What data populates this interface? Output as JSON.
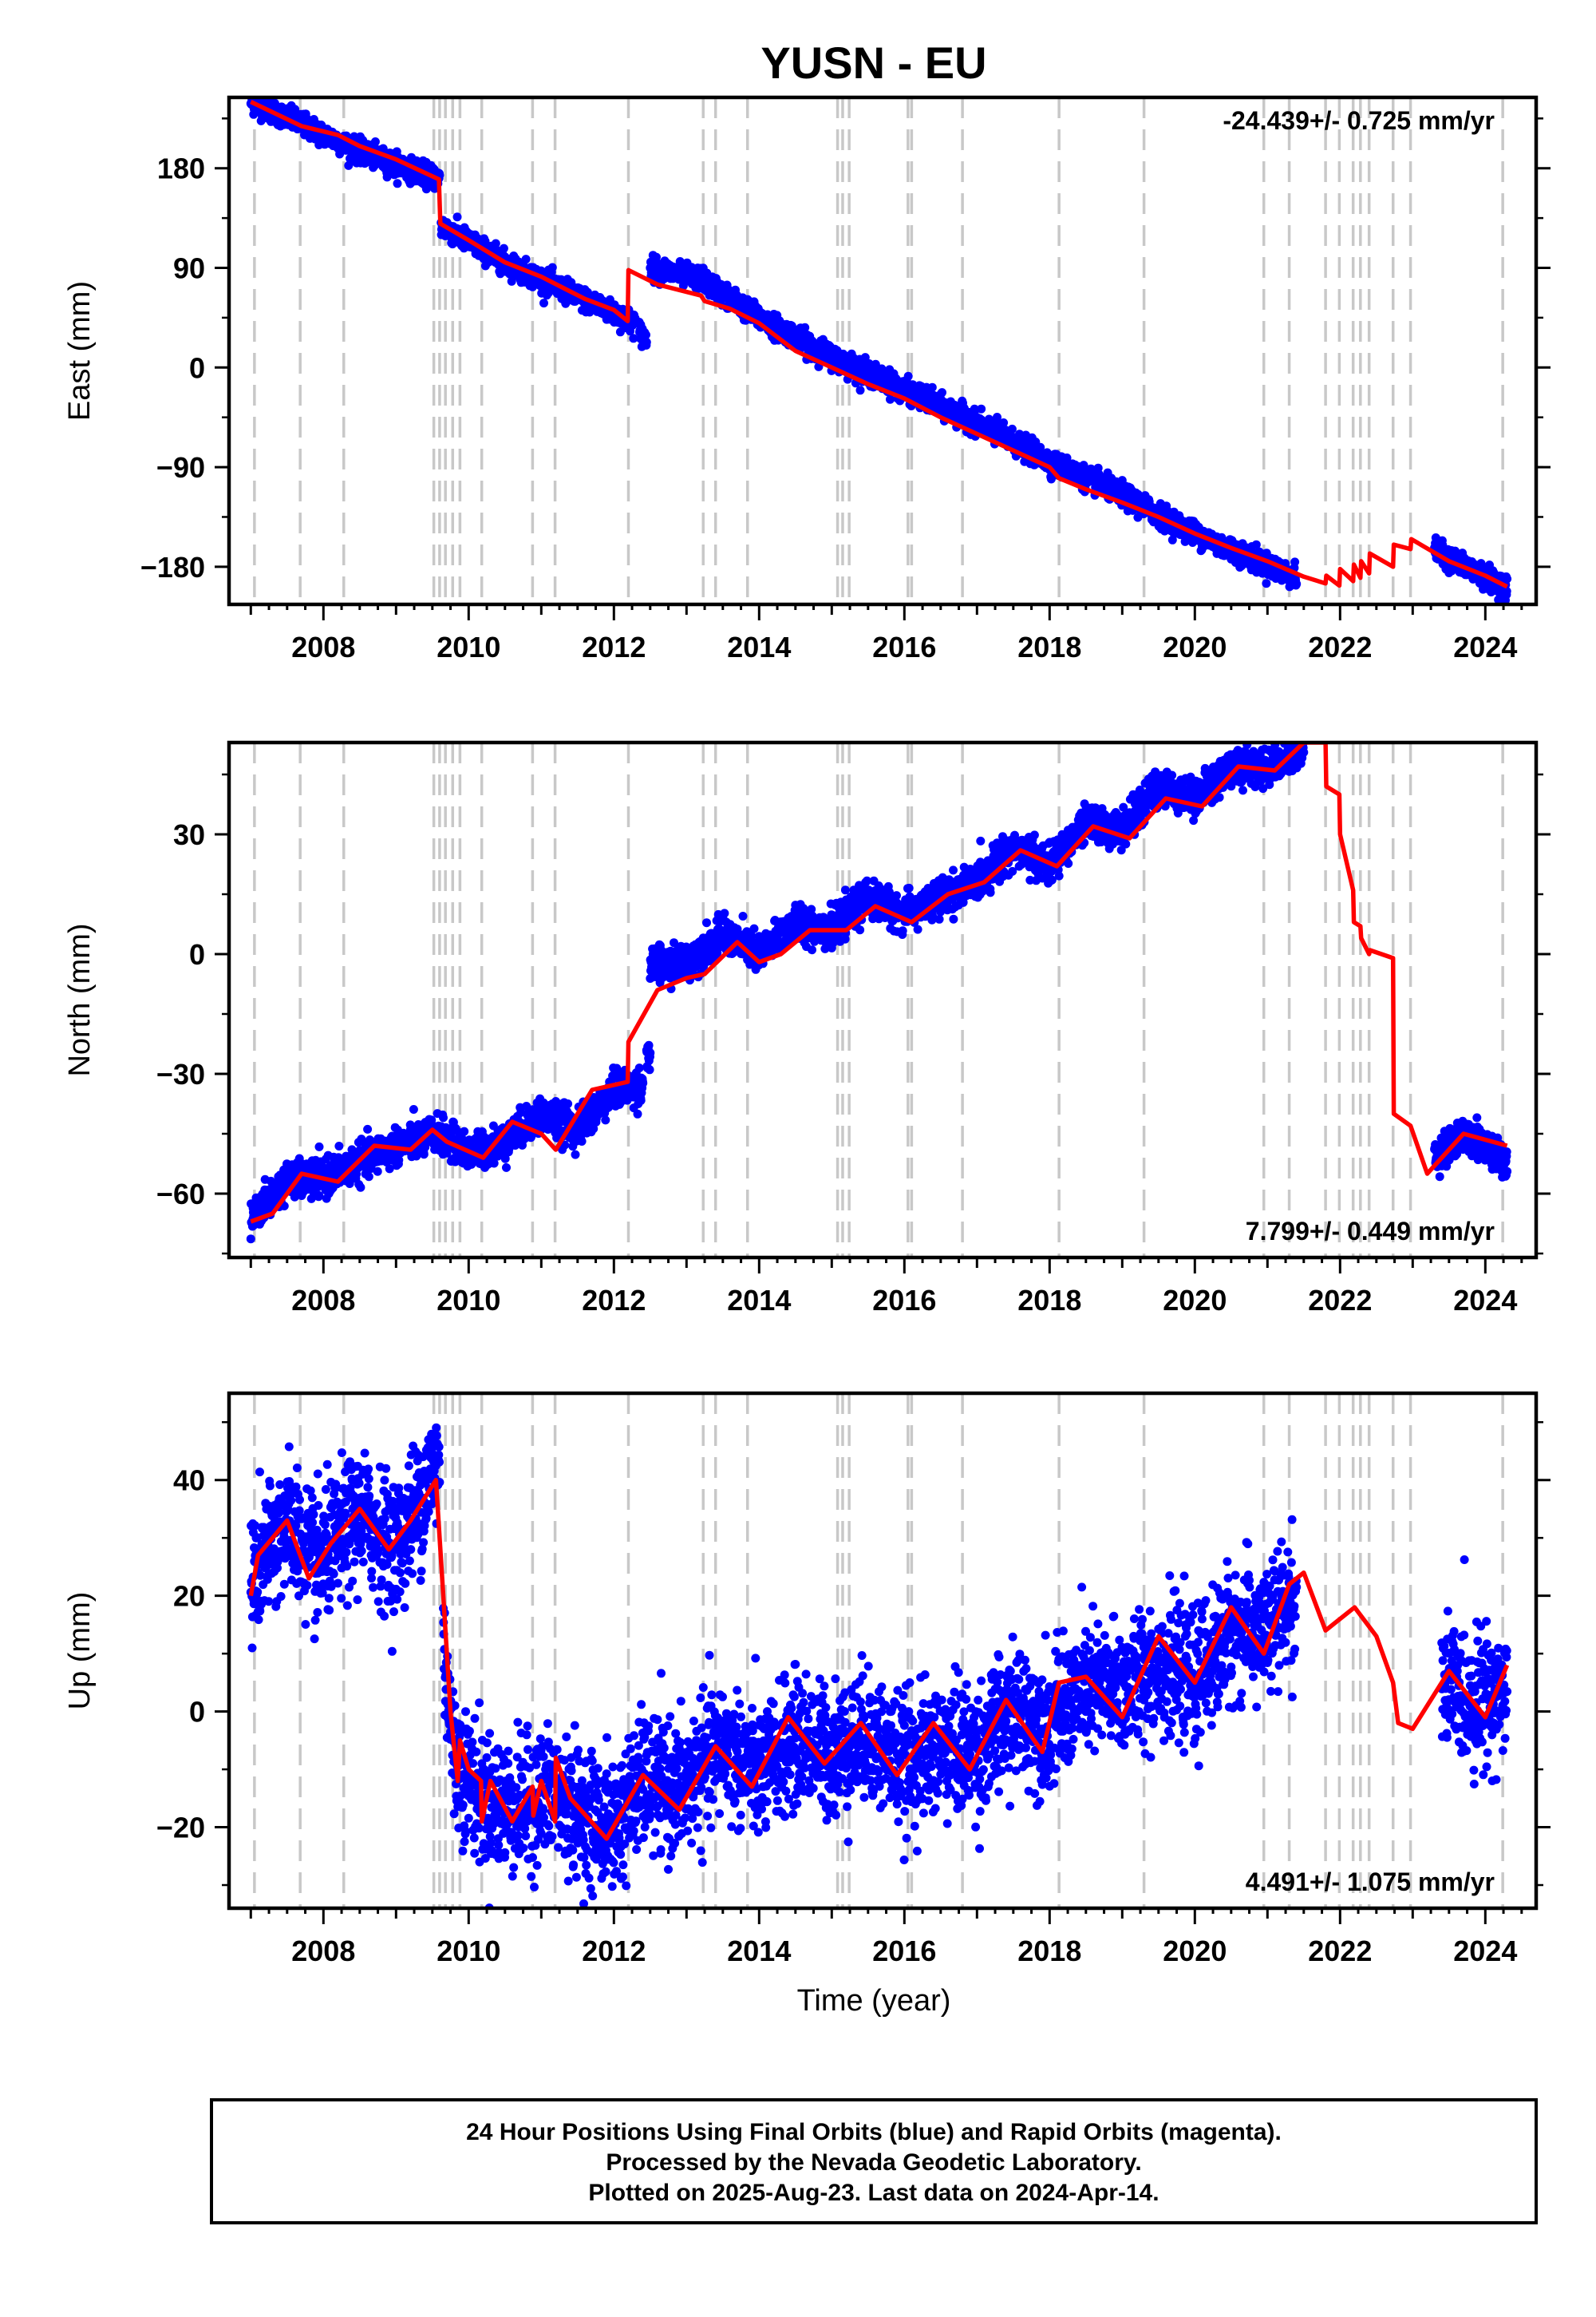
{
  "figure": {
    "title": "YUSN - EU",
    "x_axis_label": "Time (year)",
    "footer": [
      "24 Hour Positions Using Final Orbits (blue) and Rapid Orbits (magenta).",
      "Processed by the Nevada Geodetic Laboratory.",
      "Plotted on 2025-Aug-23. Last data on 2024-Apr-14."
    ]
  },
  "colors": {
    "observations": "#0000ff",
    "model": "#ff0000",
    "event_lines": "#c8c8c8",
    "frame": "#000000"
  },
  "event_years": [
    2007.05,
    2007.68,
    2008.28,
    2009.52,
    2009.6,
    2009.68,
    2009.78,
    2009.88,
    2010.18,
    2010.88,
    2011.19,
    2012.2,
    2013.23,
    2013.4,
    2013.84,
    2015.08,
    2015.15,
    2015.24,
    2016.05,
    2016.1,
    2016.8,
    2018.13,
    2019.3,
    2020.95,
    2021.3,
    2021.8,
    2021.99,
    2022.18,
    2022.28,
    2022.4,
    2022.73,
    2022.97,
    2024.24
  ],
  "chart_data": [
    {
      "type": "scatter",
      "panel": "east",
      "ylabel": "East (mm)",
      "rate_text": "-24.439+/- 0.725 mm/yr",
      "xlim": [
        2006.7,
        2024.7
      ],
      "ylim": [
        -214,
        244
      ],
      "x_ticks": [
        2008,
        2010,
        2012,
        2014,
        2016,
        2018,
        2020,
        2022,
        2024
      ],
      "y_ticks": [
        180,
        90,
        0,
        -90,
        -180
      ],
      "y_tick_labels": [
        "180",
        "90",
        "0",
        "−90",
        "−180"
      ],
      "series": [
        {
          "kind": "points",
          "segments": [
            {
              "x": [
                2007.0,
                2007.7,
                2008.5,
                2009.6
              ],
              "y": [
                240,
                220,
                195,
                170
              ]
            },
            {
              "x": [
                2009.62,
                2010.5,
                2011.3,
                2012.3
              ],
              "y": [
                128,
                95,
                70,
                40
              ]
            },
            {
              "x": [
                2012.35,
                2012.45
              ],
              "y": [
                32,
                25
              ]
            },
            {
              "x": [
                2012.5,
                2013.2,
                2014.0,
                2015.0,
                2016.0,
                2017.0,
                2018.0,
                2019.0,
                2020.0,
                2021.4
              ],
              "y": [
                90,
                80,
                45,
                10,
                -20,
                -50,
                -85,
                -115,
                -150,
                -190
              ]
            },
            {
              "x": [
                2023.3,
                2024.3
              ],
              "y": [
                -165,
                -200
              ]
            }
          ]
        },
        {
          "kind": "model",
          "x": [
            2007.0,
            2007.7,
            2008.2,
            2008.5,
            2009.0,
            2009.59,
            2009.61,
            2010.0,
            2010.5,
            2011.0,
            2011.3,
            2011.6,
            2012.0,
            2012.19,
            2012.2,
            2012.6,
            2013.2,
            2013.25,
            2013.6,
            2014.0,
            2014.5,
            2015.0,
            2015.5,
            2016.0,
            2016.5,
            2017.0,
            2017.5,
            2018.0,
            2018.13,
            2018.5,
            2019.0,
            2019.5,
            2020.0,
            2020.5,
            2021.0,
            2021.5,
            2021.8,
            2021.81,
            2021.99,
            2022.0,
            2022.18,
            2022.19,
            2022.28,
            2022.29,
            2022.4,
            2022.41,
            2022.73,
            2022.74,
            2022.97,
            2022.98,
            2023.5,
            2024.0,
            2024.3
          ],
          "y": [
            240,
            218,
            210,
            200,
            188,
            170,
            130,
            115,
            95,
            82,
            72,
            62,
            52,
            42,
            88,
            75,
            65,
            60,
            53,
            40,
            15,
            0,
            -15,
            -28,
            -45,
            -60,
            -75,
            -90,
            -100,
            -110,
            -122,
            -135,
            -150,
            -163,
            -175,
            -189,
            -195,
            -188,
            -197,
            -182,
            -193,
            -178,
            -190,
            -175,
            -186,
            -168,
            -180,
            -160,
            -164,
            -155,
            -175,
            -188,
            -198
          ]
        }
      ]
    },
    {
      "type": "scatter",
      "panel": "north",
      "ylabel": "North (mm)",
      "rate_text": "7.799+/- 0.449 mm/yr",
      "xlim": [
        2006.7,
        2024.7
      ],
      "ylim": [
        -76,
        53
      ],
      "x_ticks": [
        2008,
        2010,
        2012,
        2014,
        2016,
        2018,
        2020,
        2022,
        2024
      ],
      "y_ticks": [
        30,
        0,
        -30,
        -60
      ],
      "y_tick_labels": [
        "30",
        "0",
        "−30",
        "−60"
      ],
      "series": [
        {
          "kind": "points",
          "segments": [
            {
              "x": [
                2007.0,
                2007.5,
                2008.0,
                2009.0,
                2009.6,
                2010.0,
                2010.5,
                2011.0,
                2011.5,
                2012.0,
                2012.4
              ],
              "y": [
                -66,
                -57,
                -56,
                -48,
                -45,
                -50,
                -47,
                -40,
                -44,
                -34,
                -33
              ]
            },
            {
              "x": [
                2012.45,
                2012.5
              ],
              "y": [
                -24,
                -26
              ]
            },
            {
              "x": [
                2012.5,
                2013.0,
                2013.5,
                2014.0,
                2014.5,
                2015.0,
                2015.5,
                2016.0,
                2016.5,
                2017.0,
                2017.5,
                2018.0,
                2018.5,
                2019.0,
                2019.5,
                2020.0,
                2020.5,
                2021.0,
                2021.5
              ],
              "y": [
                -3,
                -2,
                5,
                0,
                8,
                6,
                14,
                10,
                14,
                18,
                27,
                22,
                33,
                31,
                42,
                39,
                47,
                47,
                51
              ]
            },
            {
              "x": [
                2023.3,
                2023.8,
                2024.3
              ],
              "y": [
                -50,
                -45,
                -52
              ]
            }
          ]
        },
        {
          "kind": "model",
          "x": [
            2007.0,
            2007.3,
            2007.7,
            2008.2,
            2008.7,
            2009.2,
            2009.5,
            2009.7,
            2010.2,
            2010.6,
            2011.0,
            2011.2,
            2011.7,
            2012.19,
            2012.2,
            2012.6,
            2013.0,
            2013.25,
            2013.7,
            2014.0,
            2014.3,
            2014.7,
            2015.2,
            2015.6,
            2016.1,
            2016.6,
            2017.1,
            2017.6,
            2018.1,
            2018.6,
            2019.1,
            2019.6,
            2020.1,
            2020.6,
            2021.1,
            2021.5,
            2021.8,
            2021.81,
            2021.99,
            2022.0,
            2022.18,
            2022.19,
            2022.28,
            2022.29,
            2022.4,
            2022.41,
            2022.73,
            2022.74,
            2022.97,
            2023.2,
            2023.7,
            2024.3
          ],
          "y": [
            -67,
            -65,
            -55,
            -57,
            -48,
            -49,
            -44,
            -47,
            -51,
            -42,
            -45,
            -49,
            -34,
            -32,
            -22,
            -9,
            -6,
            -5,
            3,
            -2,
            0,
            6,
            6,
            12,
            8,
            15,
            18,
            26,
            22,
            32,
            29,
            39,
            37,
            47,
            46,
            53,
            53,
            42,
            40,
            30,
            16,
            8,
            7,
            4,
            0,
            1,
            -1,
            -40,
            -43,
            -55,
            -45,
            -48
          ]
        }
      ]
    },
    {
      "type": "scatter",
      "panel": "up",
      "ylabel": "Up (mm)",
      "rate_text": "4.491+/- 1.075 mm/yr",
      "xlim": [
        2006.7,
        2024.7
      ],
      "ylim": [
        -34,
        55
      ],
      "x_ticks": [
        2008,
        2010,
        2012,
        2014,
        2016,
        2018,
        2020,
        2022,
        2024
      ],
      "y_ticks": [
        40,
        20,
        0,
        -20
      ],
      "y_tick_labels": [
        "40",
        "20",
        "0",
        "−20"
      ],
      "series": [
        {
          "kind": "points",
          "segments": [
            {
              "x": [
                2007.0,
                2007.5,
                2007.9,
                2008.5,
                2009.0,
                2009.6
              ],
              "y": [
                22,
                33,
                25,
                34,
                28,
                44
              ]
            },
            {
              "x": [
                2009.65,
                2009.8,
                2010.2,
                2010.7,
                2011.1,
                2011.6,
                2012.0,
                2012.4,
                2012.9,
                2013.5,
                2014.0,
                2014.5,
                2015.0,
                2015.5,
                2016.0,
                2016.5,
                2017.0,
                2017.5,
                2018.0,
                2018.5,
                2019.0,
                2019.5,
                2020.0,
                2020.5,
                2021.0,
                2021.4
              ],
              "y": [
                12,
                -8,
                -15,
                -17,
                -14,
                -18,
                -20,
                -12,
                -14,
                -6,
                -11,
                -5,
                -7,
                -4,
                -9,
                -6,
                -7,
                0,
                -2,
                4,
                4,
                8,
                5,
                14,
                14,
                20
              ]
            },
            {
              "x": [
                2023.4,
                2023.8,
                2024.3
              ],
              "y": [
                5,
                2,
                4
              ]
            }
          ]
        },
        {
          "kind": "model",
          "x": [
            2007.0,
            2007.1,
            2007.5,
            2007.8,
            2008.1,
            2008.5,
            2008.9,
            2009.2,
            2009.55,
            2009.65,
            2009.75,
            2009.85,
            2009.88,
            2010.0,
            2010.17,
            2010.18,
            2010.3,
            2010.6,
            2010.88,
            2010.89,
            2011.0,
            2011.19,
            2011.2,
            2011.4,
            2011.9,
            2012.4,
            2012.9,
            2013.4,
            2013.9,
            2014.4,
            2014.9,
            2015.4,
            2015.9,
            2016.4,
            2016.9,
            2017.4,
            2017.9,
            2018.13,
            2018.5,
            2019.0,
            2019.5,
            2020.0,
            2020.5,
            2020.95,
            2021.3,
            2021.5,
            2021.8,
            2022.2,
            2022.5,
            2022.73,
            2022.8,
            2023.0,
            2023.5,
            2024.0,
            2024.3
          ],
          "y": [
            20,
            27,
            33,
            23,
            29,
            35,
            28,
            33,
            40,
            20,
            0,
            -12,
            -5,
            -10,
            -12,
            -19,
            -12,
            -19,
            -13,
            -18,
            -12,
            -19,
            -8,
            -15,
            -22,
            -11,
            -17,
            -6,
            -13,
            -1,
            -9,
            -2,
            -11,
            -2,
            -10,
            2,
            -7,
            5,
            6,
            -1,
            13,
            5,
            18,
            10,
            22,
            24,
            14,
            18,
            13,
            5,
            -2,
            -3,
            7,
            -1,
            8
          ]
        }
      ]
    }
  ]
}
